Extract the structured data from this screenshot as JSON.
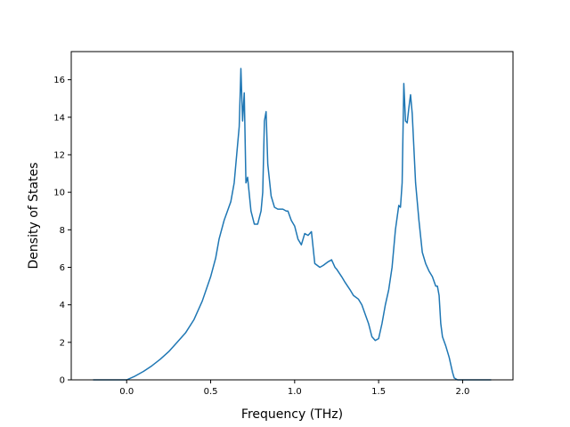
{
  "chart_data": {
    "type": "line",
    "title": "",
    "xlabel": "Frequency (THz)",
    "ylabel": "Density of States",
    "xlim": [
      -0.33,
      2.3
    ],
    "ylim": [
      0,
      17.5
    ],
    "xticks": [
      0.0,
      0.5,
      1.0,
      1.5,
      2.0
    ],
    "xtick_labels": [
      "0.0",
      "0.5",
      "1.0",
      "1.5",
      "2.0"
    ],
    "yticks": [
      0,
      2,
      4,
      6,
      8,
      10,
      12,
      14,
      16
    ],
    "ytick_labels": [
      "0",
      "2",
      "4",
      "6",
      "8",
      "10",
      "12",
      "14",
      "16"
    ],
    "grid": false,
    "legend": "none",
    "color": "#1f77b4",
    "series": [
      {
        "x": [
          -0.2,
          0.0,
          0.05,
          0.1,
          0.15,
          0.2,
          0.25,
          0.3,
          0.35,
          0.4,
          0.45,
          0.5,
          0.53,
          0.55,
          0.58,
          0.6,
          0.62,
          0.64,
          0.655,
          0.67,
          0.68,
          0.69,
          0.7,
          0.71,
          0.72,
          0.74,
          0.76,
          0.78,
          0.8,
          0.81,
          0.82,
          0.83,
          0.84,
          0.86,
          0.88,
          0.9,
          0.93,
          0.95,
          0.96,
          0.98,
          1.0,
          1.02,
          1.04,
          1.06,
          1.08,
          1.1,
          1.12,
          1.15,
          1.17,
          1.2,
          1.22,
          1.24,
          1.25,
          1.28,
          1.3,
          1.33,
          1.35,
          1.38,
          1.4,
          1.42,
          1.44,
          1.46,
          1.48,
          1.5,
          1.52,
          1.54,
          1.56,
          1.58,
          1.6,
          1.62,
          1.63,
          1.64,
          1.65,
          1.66,
          1.67,
          1.68,
          1.69,
          1.7,
          1.72,
          1.74,
          1.76,
          1.78,
          1.8,
          1.82,
          1.84,
          1.85,
          1.86,
          1.87,
          1.88,
          1.9,
          1.92,
          1.94,
          1.95,
          1.97,
          2.0,
          2.05,
          2.1,
          2.17
        ],
        "y": [
          0,
          0,
          0.2,
          0.45,
          0.75,
          1.1,
          1.5,
          2.0,
          2.5,
          3.2,
          4.2,
          5.5,
          6.5,
          7.5,
          8.5,
          9.0,
          9.5,
          10.5,
          12.0,
          13.5,
          16.6,
          13.8,
          15.3,
          10.5,
          10.8,
          9.0,
          8.3,
          8.3,
          9.0,
          10.0,
          13.8,
          14.3,
          11.5,
          9.8,
          9.2,
          9.1,
          9.1,
          9.0,
          9.0,
          8.5,
          8.2,
          7.5,
          7.2,
          7.8,
          7.7,
          7.9,
          6.2,
          6.0,
          6.1,
          6.3,
          6.4,
          6.0,
          5.9,
          5.5,
          5.2,
          4.8,
          4.5,
          4.3,
          4.0,
          3.5,
          3.0,
          2.3,
          2.1,
          2.2,
          3.0,
          4.0,
          4.8,
          6.0,
          8.0,
          9.3,
          9.2,
          10.5,
          15.8,
          13.8,
          13.7,
          14.5,
          15.2,
          14.2,
          10.5,
          8.5,
          6.8,
          6.2,
          5.8,
          5.5,
          5.0,
          5.0,
          4.5,
          3.0,
          2.3,
          1.8,
          1.2,
          0.4,
          0.1,
          0,
          0,
          0,
          0,
          0
        ]
      }
    ]
  }
}
